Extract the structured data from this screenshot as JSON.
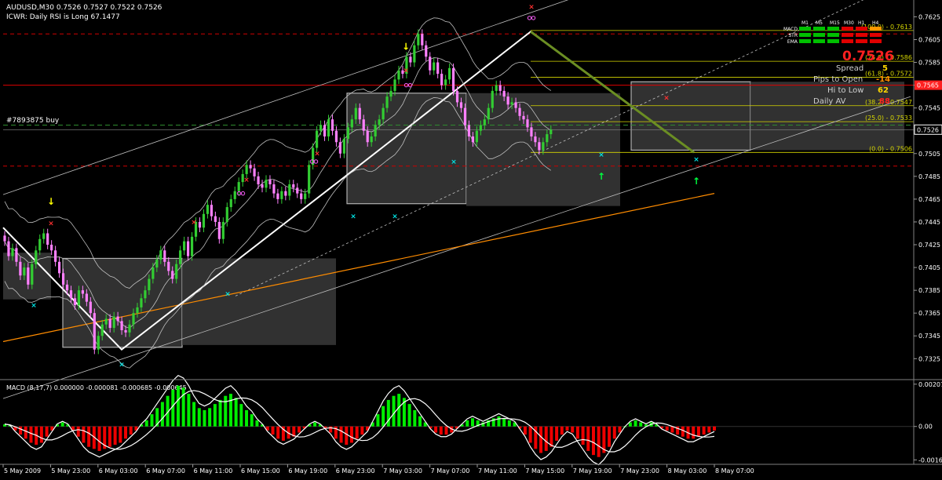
{
  "header": {
    "symbol_line": "AUDUSD,M30  0.7526 0.7527 0.7522 0.7526",
    "indicator_line": "ICWR: Daily RSI is Long 67.1477",
    "order_label": "#7893875 buy"
  },
  "colors": {
    "background": "#000000",
    "bull_candle": "#32cd32",
    "bear_candle": "#ff80ff",
    "macd_positive": "#00ee00",
    "macd_negative": "#ee0000",
    "bollinger": "#c0c0c0",
    "fib_line": "#d7d700",
    "ema_line": "#ff8c00",
    "price_badge": "#ff2020",
    "zone_fill": "#3a3a3a",
    "panel_separator": "#808080"
  },
  "status_panel": {
    "timeframes": [
      "M1",
      "M5",
      "M15",
      "M30",
      "H1",
      "H4"
    ],
    "rows": [
      {
        "label": "MACD",
        "states": [
          "green",
          "green",
          "green",
          "red",
          "red",
          "orange"
        ]
      },
      {
        "label": "STR",
        "states": [
          "green",
          "green",
          "green",
          "red",
          "red",
          "red"
        ]
      },
      {
        "label": "EMA",
        "states": [
          "green",
          "green",
          "green",
          "red",
          "red",
          "red"
        ]
      }
    ],
    "big_price": "0.7526",
    "spread_label": "Spread",
    "spread_value": "5",
    "pips_to_open_label": "Pips to Open",
    "pips_to_open_value": "-14",
    "hi_to_low_label": "Hi to Low",
    "hi_to_low_value": "62",
    "daily_av_label": "Daily AV",
    "daily_av_value": "88"
  },
  "fib_levels": [
    {
      "label": "(100.0) - 0.7613",
      "price": 0.7613
    },
    {
      "label": "(75.0) - 0.7586",
      "price": 0.7586
    },
    {
      "label": "(61.8) - 0.7572",
      "price": 0.7572
    },
    {
      "label": "(38.2) - 0.7547",
      "price": 0.7547
    },
    {
      "label": "(25.0) - 0.7533",
      "price": 0.7533
    },
    {
      "label": "(0.0) - 0.7506",
      "price": 0.7506
    }
  ],
  "chart_data": [
    {
      "type": "candlestick",
      "title": "AUDUSD,M30",
      "ylim": [
        0.7308,
        0.7637
      ],
      "y_ticks": [
        "0.7625",
        "0.7605",
        "0.7585",
        "0.7565",
        "0.7545",
        "0.7525",
        "0.7505",
        "0.7485",
        "0.7465",
        "0.7445",
        "0.7425",
        "0.7405",
        "0.7385",
        "0.7365",
        "0.7345",
        "0.7325"
      ],
      "x_ticks": [
        "5 May 2009",
        "5 May 23:00",
        "6 May 03:00",
        "6 May 07:00",
        "6 May 11:00",
        "6 May 15:00",
        "6 May 19:00",
        "6 May 23:00",
        "7 May 03:00",
        "7 May 07:00",
        "7 May 11:00",
        "7 May 15:00",
        "7 May 19:00",
        "7 May 23:00",
        "8 May 03:00",
        "8 May 07:00"
      ],
      "current_price": 0.7526,
      "highlighted_price": "0.7565",
      "close": [
        0.7428,
        0.7415,
        0.7422,
        0.741,
        0.7398,
        0.7405,
        0.739,
        0.7408,
        0.742,
        0.743,
        0.7435,
        0.7425,
        0.742,
        0.741,
        0.74,
        0.739,
        0.7385,
        0.7378,
        0.7372,
        0.7385,
        0.7382,
        0.7375,
        0.7365,
        0.7333,
        0.7345,
        0.7355,
        0.736,
        0.7352,
        0.7362,
        0.7358,
        0.735,
        0.7348,
        0.7355,
        0.7365,
        0.737,
        0.7378,
        0.7385,
        0.7395,
        0.7405,
        0.7412,
        0.742,
        0.741,
        0.7402,
        0.7395,
        0.7408,
        0.742,
        0.7428,
        0.7415,
        0.7432,
        0.7445,
        0.744,
        0.7452,
        0.746,
        0.745,
        0.7445,
        0.743,
        0.7445,
        0.7458,
        0.7465,
        0.7472,
        0.748,
        0.7487,
        0.7495,
        0.7492,
        0.7485,
        0.7478,
        0.7475,
        0.7482,
        0.7478,
        0.747,
        0.7465,
        0.7472,
        0.7468,
        0.7478,
        0.7475,
        0.747,
        0.7465,
        0.747,
        0.7495,
        0.751,
        0.7525,
        0.753,
        0.752,
        0.7535,
        0.7525,
        0.7515,
        0.7505,
        0.7518,
        0.7528,
        0.7535,
        0.7545,
        0.7535,
        0.7525,
        0.7515,
        0.752,
        0.753,
        0.7535,
        0.7545,
        0.7555,
        0.756,
        0.757,
        0.7578,
        0.7575,
        0.759,
        0.7585,
        0.76,
        0.761,
        0.76,
        0.759,
        0.7578,
        0.7585,
        0.7575,
        0.7565,
        0.757,
        0.758,
        0.756,
        0.755,
        0.7545,
        0.753,
        0.752,
        0.7515,
        0.7525,
        0.753,
        0.7535,
        0.7545,
        0.756,
        0.7565,
        0.756,
        0.7555,
        0.7548,
        0.755,
        0.7545,
        0.7538,
        0.7535,
        0.7528,
        0.752,
        0.7515,
        0.7508,
        0.7515,
        0.7522,
        0.7526
      ]
    },
    {
      "type": "bar",
      "title": "MACD",
      "label": "MACD  (8,17,7) 0.000000 -0.000081 -0.000685 -0.000645",
      "ylim": [
        -0.00178,
        0.00222
      ],
      "y_ticks": [
        "0.002073",
        "0.00",
        "-0.00164"
      ],
      "values": [
        0.0001,
        5e-05,
        -0.0002,
        -0.0004,
        -0.0006,
        -0.0008,
        -0.0009,
        -0.0008,
        -0.0005,
        -0.0002,
        0.0001,
        0.0002,
        0.0001,
        -0.0002,
        -0.0005,
        -0.0008,
        -0.001,
        -0.0011,
        -0.0012,
        -0.0011,
        -0.001,
        -0.0009,
        -0.0008,
        -0.0006,
        -0.0004,
        -0.0002,
        0.0001,
        0.0003,
        0.0006,
        0.0009,
        0.0012,
        0.0015,
        0.0018,
        0.002,
        0.0019,
        0.0016,
        0.0012,
        0.0009,
        0.0008,
        0.0009,
        0.0011,
        0.0013,
        0.0015,
        0.0016,
        0.0014,
        0.0011,
        0.0008,
        0.0006,
        0.0003,
        0.0001,
        -0.0002,
        -0.0004,
        -0.0006,
        -0.0007,
        -0.0006,
        -0.0005,
        -0.0003,
        -0.0001,
        0.0001,
        0.0002,
        0.0001,
        -0.0001,
        -0.0003,
        -0.0006,
        -0.0008,
        -0.0009,
        -0.0008,
        -0.0006,
        -0.0004,
        -0.0002,
        0.0002,
        0.0006,
        0.001,
        0.0013,
        0.0015,
        0.0016,
        0.0014,
        0.0011,
        0.0008,
        0.0005,
        0.0002,
        -0.0001,
        -0.0003,
        -0.0004,
        -0.0004,
        -0.0003,
        -0.0001,
        0.0001,
        0.0003,
        0.0004,
        0.0003,
        0.0002,
        0.0003,
        0.0004,
        0.0005,
        0.0004,
        0.0003,
        0.0002,
        -0.0001,
        -0.0004,
        -0.0008,
        -0.0011,
        -0.0013,
        -0.0012,
        -0.001,
        -0.0007,
        -0.0004,
        -0.0002,
        -0.0003,
        -0.0006,
        -0.0009,
        -0.0012,
        -0.0014,
        -0.0015,
        -0.0013,
        -0.001,
        -0.0006,
        -0.0003,
        0.0,
        0.0002,
        0.0003,
        0.0002,
        0.0001,
        0.0002,
        0.0001,
        -0.0001,
        -0.0002,
        -0.0003,
        -0.0004,
        -0.0005,
        -0.0006,
        -0.0006,
        -0.0005,
        -0.0004,
        -0.0003,
        -0.0002
      ]
    }
  ]
}
